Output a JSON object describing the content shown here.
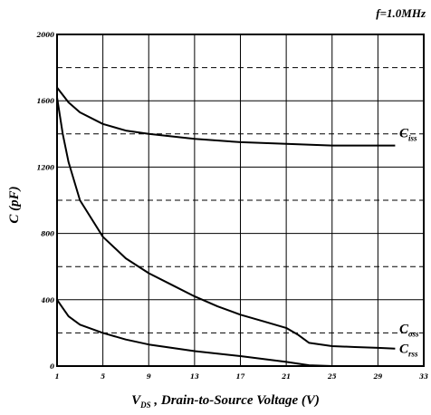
{
  "chart_data": {
    "type": "line",
    "title": "",
    "annotation": "f=1.0MHz",
    "xlabel": "V_DS , Drain-to-Source Voltage (V)",
    "xlabel_main": "V",
    "xlabel_sub": "DS",
    "xlabel_rest": " , Drain-to-Source Voltage (V)",
    "ylabel": "C (pF)",
    "xlim": [
      1,
      33
    ],
    "ylim": [
      0,
      2000
    ],
    "x_ticks": [
      1,
      5,
      9,
      13,
      17,
      21,
      25,
      29,
      33
    ],
    "x_tick_labels": [
      "1",
      "5",
      "9",
      "13",
      "17",
      "21",
      "25",
      "29",
      "33"
    ],
    "y_ticks": [
      0,
      400,
      800,
      1200,
      1600,
      2000
    ],
    "y_tick_labels": [
      "0",
      "400",
      "800",
      "1200",
      "1600",
      "2000"
    ],
    "grid": true,
    "series": [
      {
        "name": "C_iss",
        "label_main": "C",
        "label_sub": "iss",
        "label_y": 1380,
        "x": [
          1,
          2,
          3,
          5,
          7,
          9,
          13,
          17,
          21,
          25,
          29,
          30.5
        ],
        "values": [
          1680,
          1590,
          1530,
          1460,
          1420,
          1400,
          1370,
          1350,
          1340,
          1330,
          1330,
          1330
        ]
      },
      {
        "name": "C_oss",
        "label_main": "C",
        "label_sub": "oss",
        "label_y": 200,
        "x": [
          1,
          1.5,
          2,
          3,
          5,
          7,
          9,
          11,
          13,
          15,
          17,
          19,
          21,
          22,
          23,
          25,
          27,
          29,
          30.5
        ],
        "values": [
          1620,
          1400,
          1230,
          1000,
          780,
          650,
          560,
          490,
          420,
          360,
          310,
          270,
          230,
          190,
          140,
          120,
          115,
          110,
          105
        ]
      },
      {
        "name": "C_rss",
        "label_main": "C",
        "label_sub": "rss",
        "label_y": 80,
        "x": [
          1,
          1.5,
          2,
          3,
          5,
          7,
          9,
          13,
          17,
          21,
          23,
          25,
          29,
          30.5
        ],
        "values": [
          400,
          350,
          300,
          250,
          200,
          160,
          130,
          90,
          60,
          25,
          5,
          0,
          0,
          0
        ]
      }
    ]
  }
}
